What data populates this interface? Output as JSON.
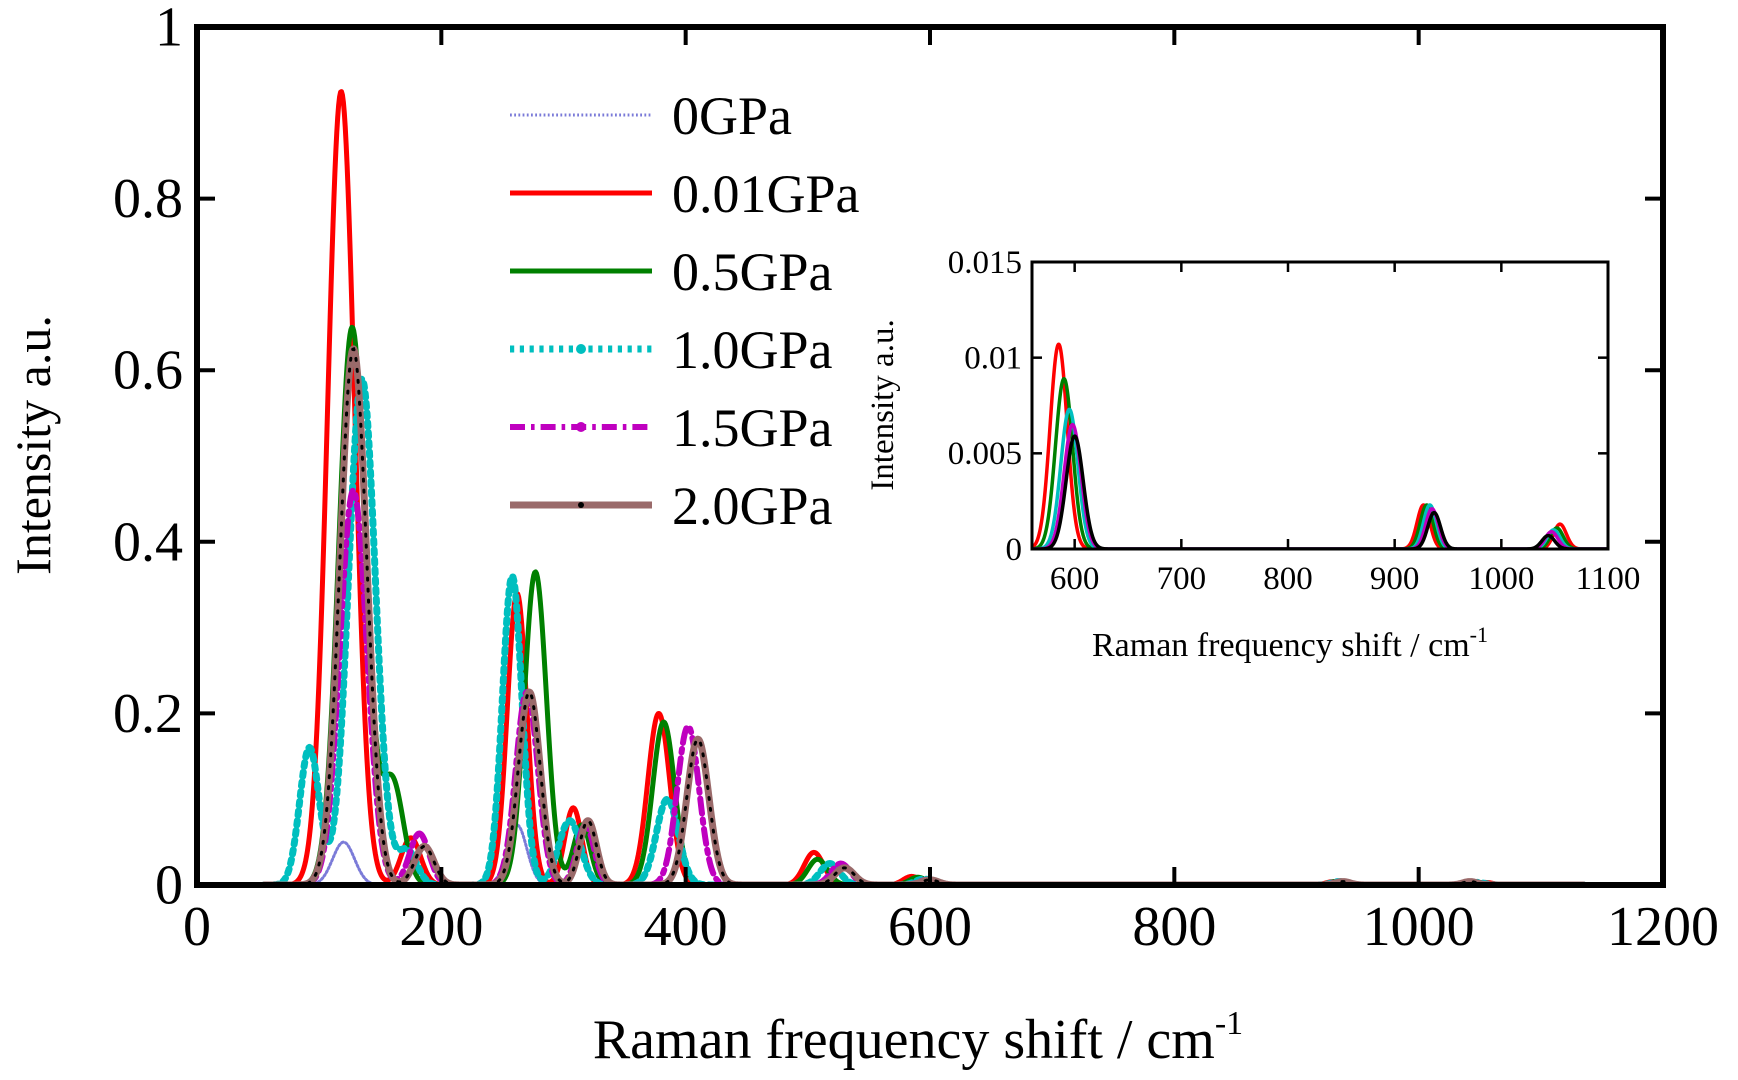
{
  "chart_data": [
    {
      "id": "main",
      "type": "line",
      "title": "",
      "xlabel": "Raman frequency shift / cm",
      "xlabel_sup": "-1",
      "ylabel": "Intensity a.u.",
      "xlim": [
        0,
        1200
      ],
      "ylim": [
        0,
        1
      ],
      "xticks": [
        0,
        200,
        400,
        600,
        800,
        1000,
        1200
      ],
      "xtick_labels": [
        "0",
        "200",
        "400",
        "600",
        "800",
        "1000",
        "1200"
      ],
      "yticks": [
        0,
        0.2,
        0.4,
        0.6,
        0.8,
        1
      ],
      "ytick_labels": [
        "0",
        "0.2",
        "0.4",
        "0.6",
        "0.8",
        "1"
      ],
      "grid": false,
      "legend_position": "top-center",
      "x_range": [
        55,
        1135
      ],
      "series": [
        {
          "name": "0GPa",
          "color": "#7b7bd8",
          "style": "dotted",
          "width": 3,
          "peaks": [
            [
              120,
              0.05,
              9
            ],
            [
              262,
              0.07,
              8
            ]
          ]
        },
        {
          "name": "0.01GPa",
          "color": "#ff0000",
          "style": "solid",
          "width": 5,
          "peaks": [
            [
              118,
              0.925,
              11
            ],
            [
              175,
              0.055,
              8
            ],
            [
              262,
              0.34,
              8
            ],
            [
              308,
              0.09,
              7
            ],
            [
              378,
              0.2,
              9
            ],
            [
              505,
              0.038,
              8
            ],
            [
              585,
              0.01,
              7
            ],
            [
              930,
              0.004,
              6
            ],
            [
              1055,
              0.003,
              6
            ]
          ]
        },
        {
          "name": "0.5GPa",
          "color": "#008000",
          "style": "solid",
          "width": 5,
          "peaks": [
            [
              127,
              0.65,
              11
            ],
            [
              160,
              0.12,
              9
            ],
            [
              277,
              0.365,
              9
            ],
            [
              315,
              0.07,
              7
            ],
            [
              382,
              0.19,
              9
            ],
            [
              508,
              0.03,
              8
            ],
            [
              590,
              0.009,
              7
            ],
            [
              932,
              0.004,
              6
            ],
            [
              1050,
              0.003,
              6
            ]
          ]
        },
        {
          "name": "1.0GPa",
          "color": "#00bfbf",
          "style": "dotted",
          "width": 7,
          "peaks": [
            [
              92,
              0.16,
              8
            ],
            [
              135,
              0.59,
              11
            ],
            [
              172,
              0.04,
              8
            ],
            [
              258,
              0.36,
              8
            ],
            [
              305,
              0.075,
              9
            ],
            [
              385,
              0.1,
              9
            ],
            [
              518,
              0.025,
              8
            ],
            [
              595,
              0.007,
              7
            ],
            [
              935,
              0.004,
              6
            ],
            [
              1048,
              0.003,
              6
            ]
          ]
        },
        {
          "name": "1.5GPa",
          "color": "#bf00bf",
          "style": "dashdot",
          "width": 6,
          "peaks": [
            [
              128,
              0.46,
              11
            ],
            [
              182,
              0.06,
              8
            ],
            [
              270,
              0.225,
              9
            ],
            [
              318,
              0.07,
              7
            ],
            [
              402,
              0.185,
              9
            ],
            [
              527,
              0.025,
              8
            ],
            [
              598,
              0.006,
              7
            ],
            [
              936,
              0.004,
              6
            ],
            [
              1045,
              0.003,
              6
            ]
          ]
        },
        {
          "name": "2.0GPa",
          "color": "#9a6a6a",
          "style": "solid",
          "width": 7,
          "dot_color": "#000000",
          "peaks": [
            [
              128,
              0.625,
              11
            ],
            [
              186,
              0.045,
              8
            ],
            [
              272,
              0.225,
              9
            ],
            [
              320,
              0.075,
              7
            ],
            [
              410,
              0.17,
              9
            ],
            [
              530,
              0.02,
              8
            ],
            [
              600,
              0.006,
              7
            ],
            [
              938,
              0.004,
              6
            ],
            [
              1042,
              0.004,
              6
            ]
          ]
        }
      ]
    },
    {
      "id": "inset",
      "type": "line",
      "title": "",
      "xlabel": "Raman frequency shift / cm",
      "xlabel_sup": "-1",
      "ylabel": "Intensity a.u.",
      "xlim": [
        560,
        1100
      ],
      "ylim": [
        0,
        0.015
      ],
      "xticks": [
        600,
        700,
        800,
        900,
        1000,
        1100
      ],
      "xtick_labels": [
        "600",
        "700",
        "800",
        "900",
        "1000",
        "1100"
      ],
      "yticks": [
        0,
        0.005,
        0.01,
        0.015
      ],
      "ytick_labels": [
        "0",
        "0.005",
        "0.01",
        "0.015"
      ],
      "grid": false,
      "x_range": [
        560,
        1100
      ],
      "series": [
        {
          "name": "0.01GPa",
          "color": "#ff0000",
          "peaks": [
            [
              585,
              0.0107,
              8
            ],
            [
              927,
              0.0023,
              6
            ],
            [
              1055,
              0.0013,
              6
            ]
          ]
        },
        {
          "name": "0.5GPa",
          "color": "#008000",
          "peaks": [
            [
              590,
              0.0089,
              8
            ],
            [
              930,
              0.0023,
              6
            ],
            [
              1052,
              0.0011,
              6
            ]
          ]
        },
        {
          "name": "1.0GPa",
          "color": "#00bfbf",
          "peaks": [
            [
              595,
              0.0073,
              8
            ],
            [
              933,
              0.0023,
              6
            ],
            [
              1049,
              0.001,
              6
            ]
          ]
        },
        {
          "name": "1.5GPa",
          "color": "#bf00bf",
          "peaks": [
            [
              598,
              0.0065,
              8
            ],
            [
              935,
              0.0021,
              6
            ],
            [
              1047,
              0.0009,
              6
            ]
          ]
        },
        {
          "name": "2.0GPa",
          "color": "#000000",
          "peaks": [
            [
              600,
              0.0059,
              8
            ],
            [
              937,
              0.0019,
              6
            ],
            [
              1044,
              0.0007,
              6
            ]
          ]
        }
      ]
    }
  ]
}
